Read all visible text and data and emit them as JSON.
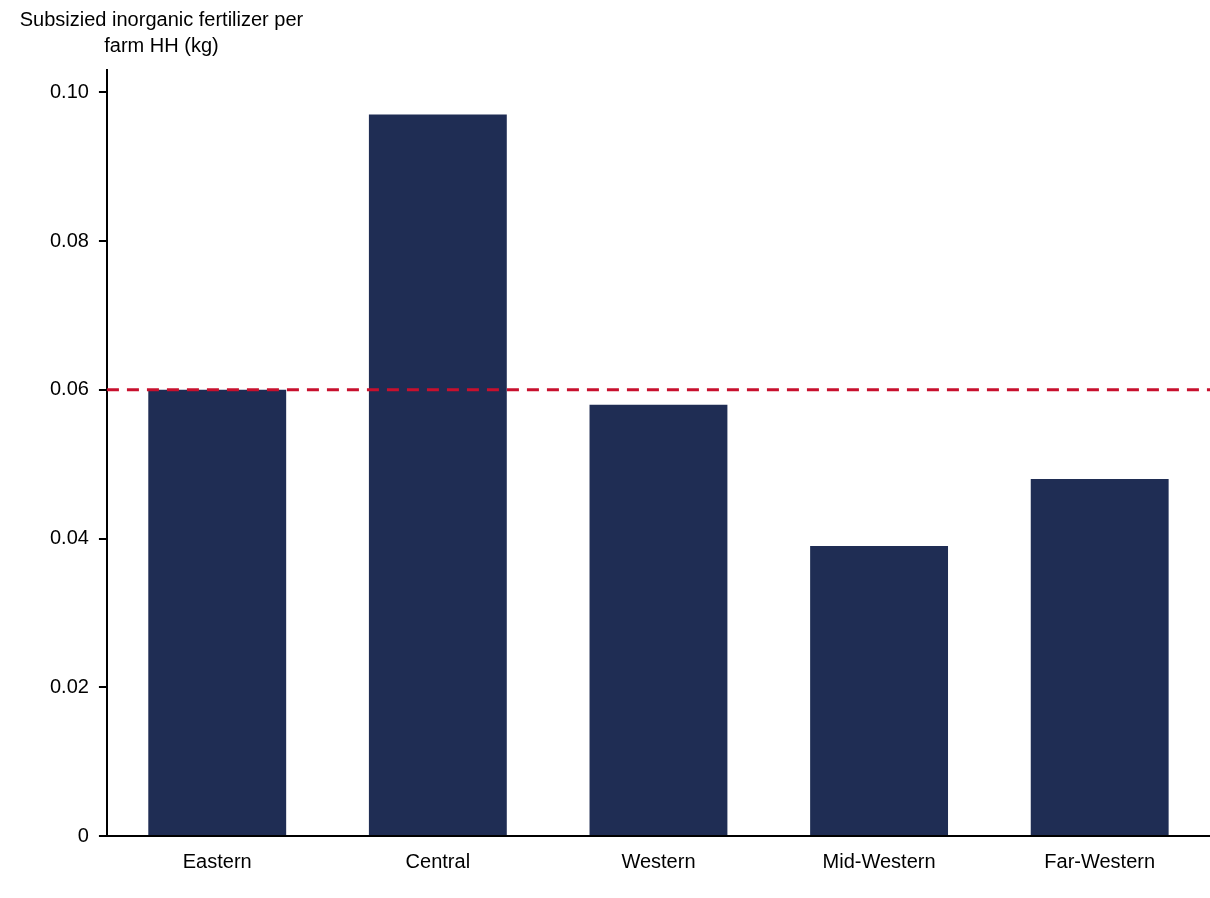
{
  "chart_data": {
    "type": "bar",
    "ylabel": "Subsizied inorganic fertilizer per farm HH (kg)",
    "categories": [
      "Eastern",
      "Central",
      "Western",
      "Mid-Western",
      "Far-Western"
    ],
    "values": [
      0.06,
      0.097,
      0.058,
      0.039,
      0.048
    ],
    "color": "#1f2d54",
    "ylim": [
      0,
      0.103
    ],
    "yticks": [
      0,
      0.02,
      0.04,
      0.06,
      0.08,
      {
        "value": 0.1,
        "label": "0.10"
      }
    ],
    "grid": false,
    "legend": false,
    "ref_lines": [
      {
        "axis": "y",
        "value": 0.06,
        "color": "#c8102e",
        "line_style": "dashed"
      }
    ]
  }
}
